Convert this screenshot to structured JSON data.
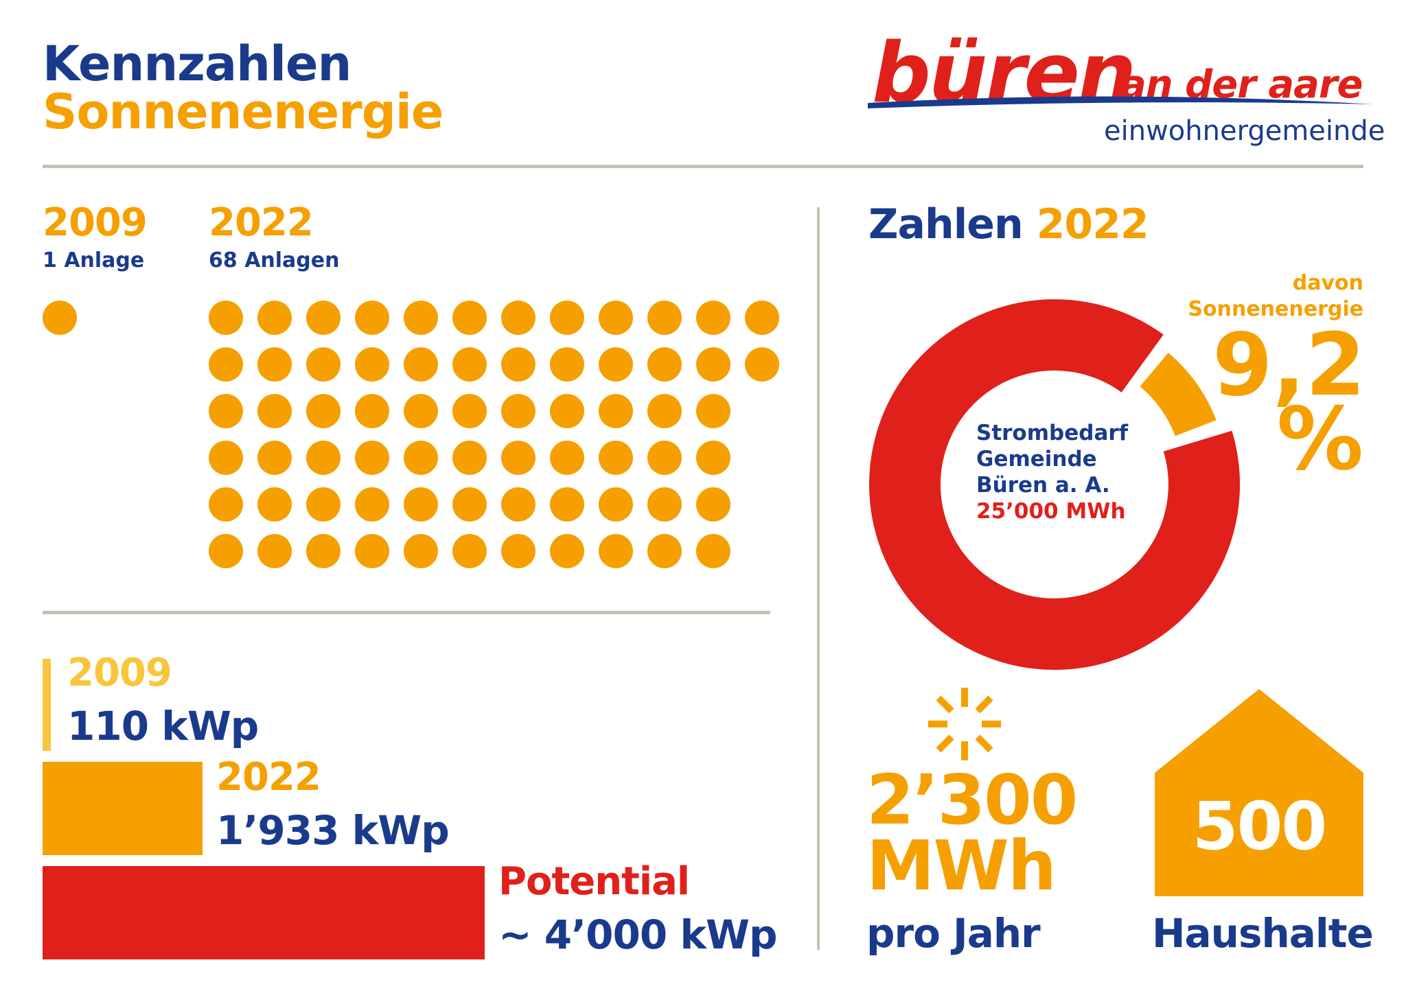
{
  "header": {
    "title_line1": "Kennzahlen",
    "title_line2": "Sonnenenergie",
    "logo_main": "büren",
    "logo_sub": "an der aare",
    "logo_tagline": "einwohnergemeinde"
  },
  "installations": {
    "y2009": {
      "year": "2009",
      "count_label": "1 Anlage",
      "count": 1
    },
    "y2022": {
      "year": "2022",
      "count_label": "68 Anlagen",
      "count": 68
    }
  },
  "capacity": {
    "y2009": {
      "year": "2009",
      "value_label": "110 kWp",
      "kwp": 110
    },
    "y2022": {
      "year": "2022",
      "value_label": "1’933 kWp",
      "kwp": 1933
    },
    "potential": {
      "label": "Potential",
      "value_label": "~ 4’000 kWp",
      "kwp": 4000
    }
  },
  "numbers_2022": {
    "heading_part1": "Zahlen",
    "heading_part2": "2022",
    "share_label_line1": "davon",
    "share_label_line2": "Sonnenenergie",
    "share_value": "9,2",
    "share_unit": "%",
    "share_percent": 9.2,
    "donut_line1": "Strombedarf",
    "donut_line2": "Gemeinde",
    "donut_line3": "Büren a. A.",
    "donut_line4": "25’000 MWh",
    "production_value": "2’300",
    "production_unit": "MWh",
    "production_period": "pro Jahr",
    "households_value": "500",
    "households_label": "Haushalte"
  },
  "colors": {
    "blue": "#1a3a8c",
    "orange": "#f5a000",
    "light_orange": "#f9c53a",
    "red": "#e0201a",
    "divider": "#c8c0b6"
  }
}
